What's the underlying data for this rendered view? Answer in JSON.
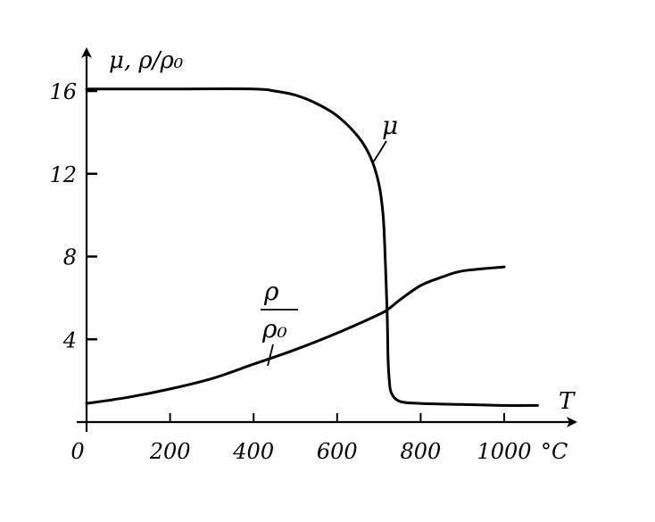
{
  "chart_data": {
    "type": "line",
    "ylabel": "μ, ρ/ρ₀",
    "xlabel": "T",
    "x_unit": "°C",
    "xlim": [
      0,
      1100
    ],
    "ylim": [
      0,
      17
    ],
    "x_ticks": [
      0,
      200,
      400,
      600,
      800,
      1000
    ],
    "x_tick_labels": [
      "0",
      "200",
      "400",
      "600",
      "800",
      "1000"
    ],
    "y_ticks": [
      4,
      8,
      12,
      16
    ],
    "y_tick_labels": [
      "4",
      "8",
      "12",
      "16"
    ],
    "grid": false,
    "legend": "none",
    "series": [
      {
        "name": "μ",
        "x": [
          0,
          200,
          400,
          450,
          500,
          550,
          600,
          650,
          680,
          700,
          710,
          715,
          720,
          722,
          725,
          730,
          750,
          800,
          900,
          1000,
          1080
        ],
        "y": [
          16.1,
          16.1,
          16.1,
          16.0,
          15.8,
          15.4,
          14.8,
          13.8,
          12.8,
          11.5,
          10.0,
          8.0,
          5.0,
          3.0,
          2.0,
          1.4,
          1.0,
          0.9,
          0.85,
          0.8,
          0.8
        ]
      },
      {
        "name": "ρ/ρ₀",
        "name_numerator": "ρ",
        "name_denominator": "ρ₀",
        "x": [
          0,
          100,
          200,
          300,
          400,
          500,
          600,
          700,
          725,
          750,
          800,
          850,
          900,
          1000
        ],
        "y": [
          0.9,
          1.2,
          1.6,
          2.1,
          2.8,
          3.5,
          4.3,
          5.2,
          5.5,
          5.9,
          6.6,
          7.0,
          7.3,
          7.5
        ]
      }
    ]
  }
}
